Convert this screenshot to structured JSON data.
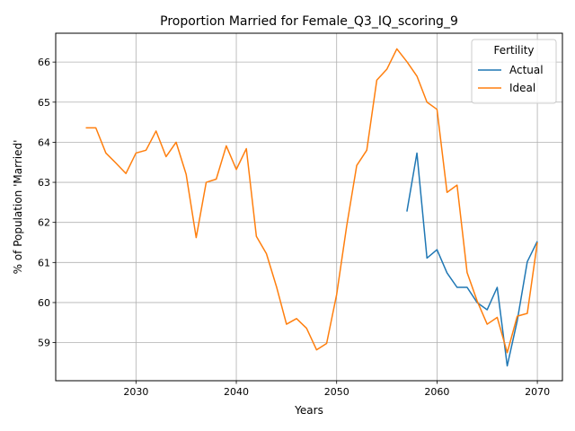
{
  "chart_data": {
    "type": "line",
    "title": "Proportion Married for Female_Q3_IQ_scoring_9",
    "xlabel": "Years",
    "ylabel": "% of Population 'Married'",
    "xlim": [
      2022,
      2072.5
    ],
    "ylim": [
      58.05,
      66.72
    ],
    "xticks": [
      2030,
      2040,
      2050,
      2060,
      2070
    ],
    "yticks": [
      59,
      60,
      61,
      62,
      63,
      64,
      65,
      66
    ],
    "grid": true,
    "legend": {
      "title": "Fertility",
      "placement": "top-right"
    },
    "series": [
      {
        "name": "Actual",
        "color": "#1f77b4",
        "x": [
          2057,
          2058,
          2059,
          2060,
          2061,
          2062,
          2063,
          2064,
          2065,
          2066,
          2067,
          2068,
          2069,
          2070
        ],
        "values": [
          62.27,
          63.73,
          61.11,
          61.32,
          60.74,
          60.38,
          60.38,
          60.0,
          59.82,
          60.38,
          58.42,
          59.55,
          61.02,
          61.53
        ]
      },
      {
        "name": "Ideal",
        "color": "#ff7f0e",
        "x": [
          2025,
          2026,
          2027,
          2028,
          2029,
          2030,
          2031,
          2032,
          2033,
          2034,
          2035,
          2036,
          2037,
          2038,
          2039,
          2040,
          2041,
          2042,
          2043,
          2044,
          2045,
          2046,
          2047,
          2048,
          2049,
          2050,
          2051,
          2052,
          2053,
          2054,
          2055,
          2056,
          2057,
          2058,
          2059,
          2060,
          2061,
          2062,
          2063,
          2064,
          2065,
          2066,
          2067,
          2068,
          2069,
          2070
        ],
        "values": [
          64.36,
          64.36,
          63.73,
          63.48,
          63.22,
          63.73,
          63.8,
          64.28,
          63.64,
          64.0,
          63.2,
          61.62,
          63.0,
          63.08,
          63.91,
          63.32,
          63.84,
          61.65,
          61.22,
          60.4,
          59.46,
          59.6,
          59.36,
          58.82,
          58.98,
          60.2,
          61.91,
          63.42,
          63.8,
          65.55,
          65.82,
          66.33,
          66.01,
          65.65,
          65.0,
          64.82,
          62.75,
          62.93,
          60.75,
          60.04,
          59.46,
          59.63,
          58.75,
          59.66,
          59.73,
          61.5
        ]
      }
    ]
  }
}
